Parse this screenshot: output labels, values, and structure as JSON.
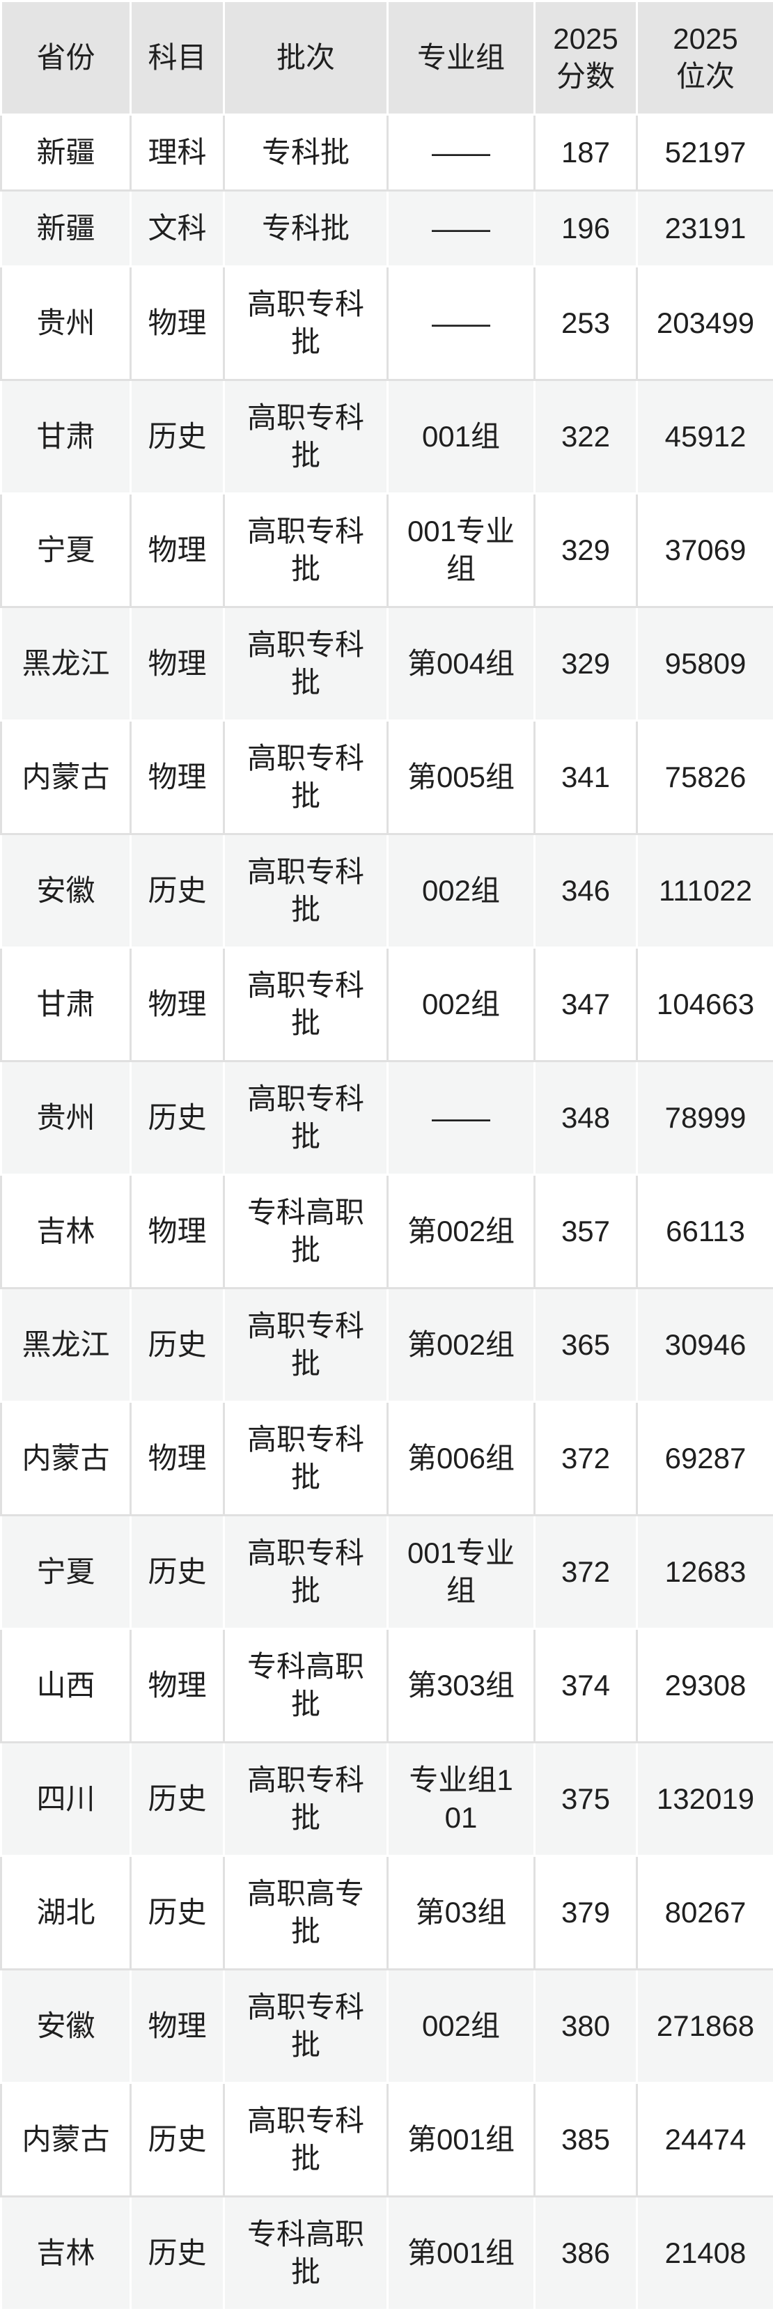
{
  "colors": {
    "page_bg": "#ffffff",
    "header_bg": "#e4e4e4",
    "row_white": "#ffffff",
    "row_gray": "#f4f5f5",
    "border_on_white": "#e0e0e0",
    "border_on_gray": "#ffffff",
    "text_color": "#1f1f1f"
  },
  "table": {
    "columns": [
      {
        "key": "province",
        "label": "省份",
        "lines": [
          "省份"
        ]
      },
      {
        "key": "subject",
        "label": "科目",
        "lines": [
          "科目"
        ]
      },
      {
        "key": "batch",
        "label": "批次",
        "lines": [
          "批次"
        ]
      },
      {
        "key": "group",
        "label": "专业组",
        "lines": [
          "专业组"
        ]
      },
      {
        "key": "score",
        "label": "2025分数",
        "lines": [
          "2025",
          "分数"
        ]
      },
      {
        "key": "rank",
        "label": "2025位次",
        "lines": [
          "2025",
          "位次"
        ]
      }
    ],
    "rows": [
      {
        "province": "新疆",
        "subject": "理科",
        "batch": "专科批",
        "group": "——",
        "score": "187",
        "rank": "52197"
      },
      {
        "province": "新疆",
        "subject": "文科",
        "batch": "专科批",
        "group": "——",
        "score": "196",
        "rank": "23191"
      },
      {
        "province": "贵州",
        "subject": "物理",
        "batch": "高职专科批",
        "group": "——",
        "score": "253",
        "rank": "203499"
      },
      {
        "province": "甘肃",
        "subject": "历史",
        "batch": "高职专科批",
        "group": "001组",
        "score": "322",
        "rank": "45912"
      },
      {
        "province": "宁夏",
        "subject": "物理",
        "batch": "高职专科批",
        "group": "001专业组",
        "score": "329",
        "rank": "37069"
      },
      {
        "province": "黑龙江",
        "subject": "物理",
        "batch": "高职专科批",
        "group": "第004组",
        "score": "329",
        "rank": "95809"
      },
      {
        "province": "内蒙古",
        "subject": "物理",
        "batch": "高职专科批",
        "group": "第005组",
        "score": "341",
        "rank": "75826"
      },
      {
        "province": "安徽",
        "subject": "历史",
        "batch": "高职专科批",
        "group": "002组",
        "score": "346",
        "rank": "111022"
      },
      {
        "province": "甘肃",
        "subject": "物理",
        "batch": "高职专科批",
        "group": "002组",
        "score": "347",
        "rank": "104663"
      },
      {
        "province": "贵州",
        "subject": "历史",
        "batch": "高职专科批",
        "group": "——",
        "score": "348",
        "rank": "78999"
      },
      {
        "province": "吉林",
        "subject": "物理",
        "batch": "专科高职批",
        "group": "第002组",
        "score": "357",
        "rank": "66113"
      },
      {
        "province": "黑龙江",
        "subject": "历史",
        "batch": "高职专科批",
        "group": "第002组",
        "score": "365",
        "rank": "30946"
      },
      {
        "province": "内蒙古",
        "subject": "物理",
        "batch": "高职专科批",
        "group": "第006组",
        "score": "372",
        "rank": "69287"
      },
      {
        "province": "宁夏",
        "subject": "历史",
        "batch": "高职专科批",
        "group": "001专业组",
        "score": "372",
        "rank": "12683"
      },
      {
        "province": "山西",
        "subject": "物理",
        "batch": "专科高职批",
        "group": "第303组",
        "score": "374",
        "rank": "29308"
      },
      {
        "province": "四川",
        "subject": "历史",
        "batch": "高职专科批",
        "group": "专业组101",
        "score": "375",
        "rank": "132019"
      },
      {
        "province": "湖北",
        "subject": "历史",
        "batch": "高职高专批",
        "group": "第03组",
        "score": "379",
        "rank": "80267"
      },
      {
        "province": "安徽",
        "subject": "物理",
        "batch": "高职专科批",
        "group": "002组",
        "score": "380",
        "rank": "271868"
      },
      {
        "province": "内蒙古",
        "subject": "历史",
        "batch": "高职专科批",
        "group": "第001组",
        "score": "385",
        "rank": "24474"
      },
      {
        "province": "吉林",
        "subject": "历史",
        "batch": "专科高职批",
        "group": "第001组",
        "score": "386",
        "rank": "21408"
      }
    ]
  }
}
